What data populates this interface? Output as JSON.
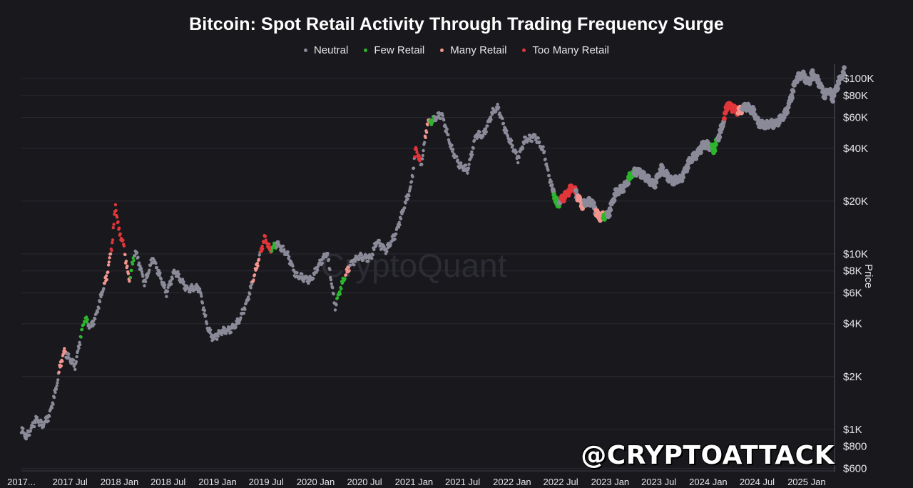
{
  "chart_data": {
    "type": "scatter",
    "title": "Bitcoin: Spot Retail Activity Through Trading Frequency Surge",
    "ylabel": "Price",
    "yscale": "log",
    "ylim": [
      580,
      115000
    ],
    "xlim": [
      "2017-01-01",
      "2025-04-15"
    ],
    "grid": true,
    "legend_position": "top-center",
    "x_tick_labels": [
      "2017...",
      "2017 Jul",
      "2018 Jan",
      "2018 Jul",
      "2019 Jan",
      "2019 Jul",
      "2020 Jan",
      "2020 Jul",
      "2021 Jan",
      "2021 Jul",
      "2022 Jan",
      "2022 Jul",
      "2023 Jan",
      "2023 Jul",
      "2024 Jan",
      "2024 Jul",
      "2025 Jan"
    ],
    "x_tick_dates": [
      "2017-01-01",
      "2017-07-01",
      "2018-01-01",
      "2018-07-01",
      "2019-01-01",
      "2019-07-01",
      "2020-01-01",
      "2020-07-01",
      "2021-01-01",
      "2021-07-01",
      "2022-01-01",
      "2022-07-01",
      "2023-01-01",
      "2023-07-01",
      "2024-01-01",
      "2024-07-01",
      "2025-01-01"
    ],
    "y_ticks": [
      600,
      800,
      1000,
      2000,
      4000,
      6000,
      8000,
      10000,
      20000,
      40000,
      60000,
      80000,
      100000
    ],
    "y_tick_labels": [
      "$600",
      "$800",
      "$1K",
      "$2K",
      "$4K",
      "$6K",
      "$8K",
      "$10K",
      "$20K",
      "$40K",
      "$60K",
      "$80K",
      "$100K"
    ],
    "series": [
      {
        "name": "Neutral",
        "color": "#8a8a99"
      },
      {
        "name": "Few Retail",
        "color": "#2db52d"
      },
      {
        "name": "Many Retail",
        "color": "#f2958e"
      },
      {
        "name": "Too Many Retail",
        "color": "#e0373a"
      }
    ],
    "price_path": [
      [
        "2017-01-01",
        1000
      ],
      [
        "2017-01-20",
        900
      ],
      [
        "2017-02-25",
        1150
      ],
      [
        "2017-03-20",
        1050
      ],
      [
        "2017-04-15",
        1200
      ],
      [
        "2017-05-10",
        1700
      ],
      [
        "2017-05-25",
        2300
      ],
      [
        "2017-06-10",
        2800
      ],
      [
        "2017-07-01",
        2500
      ],
      [
        "2017-07-20",
        2300
      ],
      [
        "2017-08-10",
        3400
      ],
      [
        "2017-08-25",
        4300
      ],
      [
        "2017-09-15",
        3800
      ],
      [
        "2017-10-05",
        4400
      ],
      [
        "2017-10-25",
        5800
      ],
      [
        "2017-11-15",
        7500
      ],
      [
        "2017-12-05",
        11500
      ],
      [
        "2017-12-17",
        19000
      ],
      [
        "2017-12-30",
        13500
      ],
      [
        "2018-01-15",
        11500
      ],
      [
        "2018-02-06",
        7000
      ],
      [
        "2018-03-01",
        10500
      ],
      [
        "2018-04-05",
        6800
      ],
      [
        "2018-05-05",
        9500
      ],
      [
        "2018-06-25",
        6000
      ],
      [
        "2018-07-25",
        8000
      ],
      [
        "2018-09-10",
        6300
      ],
      [
        "2018-10-25",
        6400
      ],
      [
        "2018-11-25",
        3800
      ],
      [
        "2018-12-15",
        3300
      ],
      [
        "2019-01-15",
        3600
      ],
      [
        "2019-02-15",
        3700
      ],
      [
        "2019-03-20",
        4100
      ],
      [
        "2019-04-20",
        5300
      ],
      [
        "2019-05-20",
        7800
      ],
      [
        "2019-06-26",
        12500
      ],
      [
        "2019-07-15",
        10500
      ],
      [
        "2019-08-10",
        11500
      ],
      [
        "2019-09-20",
        9800
      ],
      [
        "2019-10-20",
        7500
      ],
      [
        "2019-11-20",
        7300
      ],
      [
        "2019-12-15",
        7100
      ],
      [
        "2020-01-15",
        8800
      ],
      [
        "2020-02-13",
        10200
      ],
      [
        "2020-03-13",
        5000
      ],
      [
        "2020-04-10",
        6900
      ],
      [
        "2020-05-10",
        8800
      ],
      [
        "2020-06-10",
        9600
      ],
      [
        "2020-07-25",
        9500
      ],
      [
        "2020-08-15",
        11800
      ],
      [
        "2020-09-20",
        10500
      ],
      [
        "2020-10-25",
        13000
      ],
      [
        "2020-11-25",
        18500
      ],
      [
        "2020-12-20",
        24000
      ],
      [
        "2021-01-08",
        40000
      ],
      [
        "2021-01-28",
        32000
      ],
      [
        "2021-02-20",
        56000
      ],
      [
        "2021-03-15",
        58000
      ],
      [
        "2021-04-14",
        63000
      ],
      [
        "2021-05-20",
        40000
      ],
      [
        "2021-06-20",
        32000
      ],
      [
        "2021-07-20",
        30000
      ],
      [
        "2021-08-20",
        48000
      ],
      [
        "2021-09-15",
        47000
      ],
      [
        "2021-10-20",
        64000
      ],
      [
        "2021-11-10",
        68000
      ],
      [
        "2021-12-10",
        49000
      ],
      [
        "2022-01-23",
        35000
      ],
      [
        "2022-02-15",
        44000
      ],
      [
        "2022-03-28",
        47000
      ],
      [
        "2022-04-30",
        38000
      ],
      [
        "2022-05-15",
        29000
      ],
      [
        "2022-06-18",
        19000
      ],
      [
        "2022-07-10",
        21000
      ],
      [
        "2022-08-15",
        24000
      ],
      [
        "2022-09-20",
        19000
      ],
      [
        "2022-10-25",
        20000
      ],
      [
        "2022-11-20",
        16000
      ],
      [
        "2022-12-25",
        16800
      ],
      [
        "2023-01-20",
        22000
      ],
      [
        "2023-02-20",
        24000
      ],
      [
        "2023-03-20",
        28000
      ],
      [
        "2023-04-14",
        30000
      ],
      [
        "2023-05-15",
        27000
      ],
      [
        "2023-06-15",
        25000
      ],
      [
        "2023-07-10",
        30500
      ],
      [
        "2023-08-20",
        26000
      ],
      [
        "2023-09-20",
        26500
      ],
      [
        "2023-10-25",
        34000
      ],
      [
        "2023-11-20",
        37000
      ],
      [
        "2023-12-15",
        42500
      ],
      [
        "2024-01-22",
        39500
      ],
      [
        "2024-02-20",
        52000
      ],
      [
        "2024-03-14",
        72000
      ],
      [
        "2024-04-20",
        64000
      ],
      [
        "2024-05-20",
        70000
      ],
      [
        "2024-06-20",
        64000
      ],
      [
        "2024-07-05",
        56000
      ],
      [
        "2024-08-05",
        54000
      ],
      [
        "2024-09-10",
        56000
      ],
      [
        "2024-10-10",
        61000
      ],
      [
        "2024-10-29",
        72000
      ],
      [
        "2024-11-22",
        98000
      ],
      [
        "2024-12-17",
        106000
      ],
      [
        "2025-01-10",
        94000
      ],
      [
        "2025-01-21",
        106000
      ],
      [
        "2025-02-15",
        96000
      ],
      [
        "2025-03-10",
        80000
      ],
      [
        "2025-03-25",
        86000
      ],
      [
        "2025-04-08",
        77000
      ],
      [
        "2025-05-01",
        96000
      ],
      [
        "2025-05-22",
        110000
      ]
    ],
    "retail_segments": [
      {
        "series": "Many Retail",
        "from": "2017-05-20",
        "to": "2017-06-15"
      },
      {
        "series": "Few Retail",
        "from": "2017-08-10",
        "to": "2017-09-05"
      },
      {
        "series": "Many Retail",
        "from": "2017-11-05",
        "to": "2017-11-30"
      },
      {
        "series": "Too Many Retail",
        "from": "2017-12-01",
        "to": "2018-01-20"
      },
      {
        "series": "Many Retail",
        "from": "2018-01-21",
        "to": "2018-02-10"
      },
      {
        "series": "Few Retail",
        "from": "2018-02-11",
        "to": "2018-02-25"
      },
      {
        "series": "Many Retail",
        "from": "2019-05-10",
        "to": "2019-06-05"
      },
      {
        "series": "Too Many Retail",
        "from": "2019-06-10",
        "to": "2019-07-20"
      },
      {
        "series": "Few Retail",
        "from": "2019-07-21",
        "to": "2019-08-05"
      },
      {
        "series": "Few Retail",
        "from": "2020-03-20",
        "to": "2020-04-20"
      },
      {
        "series": "Many Retail",
        "from": "2020-04-21",
        "to": "2020-05-05"
      },
      {
        "series": "Too Many Retail",
        "from": "2021-01-03",
        "to": "2021-01-25"
      },
      {
        "series": "Many Retail",
        "from": "2021-02-10",
        "to": "2021-02-28"
      },
      {
        "series": "Few Retail",
        "from": "2021-03-01",
        "to": "2021-03-15"
      },
      {
        "series": "Few Retail",
        "from": "2022-06-05",
        "to": "2022-06-25"
      },
      {
        "series": "Too Many Retail",
        "from": "2022-07-01",
        "to": "2022-08-25"
      },
      {
        "series": "Many Retail",
        "from": "2022-09-01",
        "to": "2022-09-25"
      },
      {
        "series": "Many Retail",
        "from": "2022-11-08",
        "to": "2022-12-05"
      },
      {
        "series": "Few Retail",
        "from": "2022-12-06",
        "to": "2022-12-20"
      },
      {
        "series": "Few Retail",
        "from": "2023-03-10",
        "to": "2023-03-30"
      },
      {
        "series": "Few Retail",
        "from": "2024-01-15",
        "to": "2024-02-05"
      },
      {
        "series": "Too Many Retail",
        "from": "2024-03-01",
        "to": "2024-04-20"
      },
      {
        "series": "Many Retail",
        "from": "2024-04-21",
        "to": "2024-05-05"
      }
    ]
  },
  "watermark": "CryptoQuant",
  "handle": "@CRYPTOATTACK"
}
